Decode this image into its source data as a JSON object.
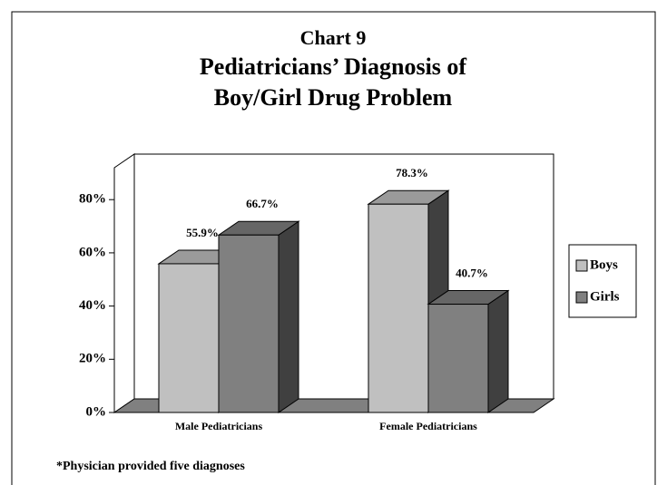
{
  "chart_data": {
    "type": "bar3d",
    "title": [
      "Chart 9",
      "Pediatricians’ Diagnosis of",
      "Boy/Girl Drug Problem"
    ],
    "footnote": "*Physician provided five diagnoses",
    "categories": [
      "Male Pediatricians",
      "Female Pediatricians"
    ],
    "series": [
      {
        "name": "Boys",
        "color": "#c0c0c0",
        "values": [
          55.9,
          78.3
        ],
        "value_labels": [
          "55.9%",
          "78.3%"
        ]
      },
      {
        "name": "Girls",
        "color": "#808080",
        "values": [
          66.7,
          40.7
        ],
        "value_labels": [
          "66.7%",
          "40.7%"
        ]
      }
    ],
    "ylim": [
      0,
      92
    ],
    "yticks": [
      {
        "value": 0,
        "label": "0%"
      },
      {
        "value": 20,
        "label": "20%"
      },
      {
        "value": 40,
        "label": "40%"
      },
      {
        "value": 60,
        "label": "60%"
      },
      {
        "value": 80,
        "label": "80%"
      }
    ],
    "legend": "right"
  }
}
